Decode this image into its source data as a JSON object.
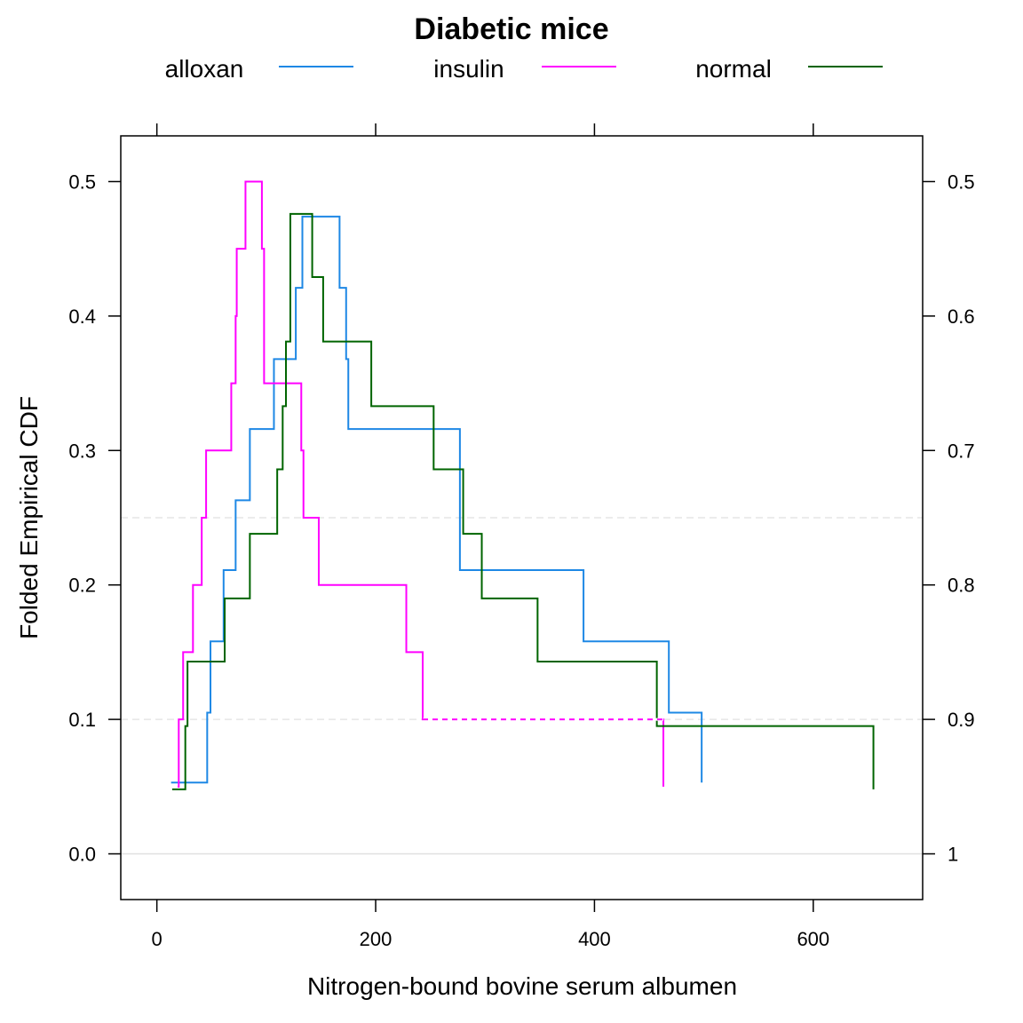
{
  "chart_data": {
    "type": "line",
    "title": "Diabetic mice",
    "xlabel": "Nitrogen-bound bovine serum albumen",
    "ylabel": "Folded Empirical CDF",
    "xlim": [
      -33,
      700
    ],
    "ylim": [
      -0.034,
      0.534
    ],
    "x_ticks": [
      0,
      200,
      400,
      600
    ],
    "x_tick_labels": [
      "0",
      "200",
      "400",
      "600"
    ],
    "y_ticks_left": [
      0.0,
      0.1,
      0.2,
      0.3,
      0.4,
      0.5
    ],
    "y_tick_labels_left": [
      "0.0",
      "0.1",
      "0.2",
      "0.3",
      "0.4",
      "0.5"
    ],
    "y_ticks_right": [
      0.5,
      0.4,
      0.3,
      0.2,
      0.1,
      0.0
    ],
    "y_tick_labels_right": [
      "0.5",
      "0.6",
      "0.7",
      "0.8",
      "0.9",
      "1"
    ],
    "reference_lines": [
      0.0,
      0.1,
      0.25
    ],
    "legend_position": "top",
    "grid": false,
    "series": [
      {
        "name": "alloxan",
        "color": "#1e88e5",
        "steps": [
          [
            13,
            0.053
          ],
          [
            46,
            0.105
          ],
          [
            49,
            0.158
          ],
          [
            61,
            0.211
          ],
          [
            72,
            0.263
          ],
          [
            85,
            0.316
          ],
          [
            107,
            0.368
          ],
          [
            127,
            0.421
          ],
          [
            133,
            0.474
          ],
          [
            167,
            0.421
          ],
          [
            173,
            0.368
          ],
          [
            175,
            0.316
          ],
          [
            277,
            0.211
          ],
          [
            390,
            0.158
          ],
          [
            468,
            0.105
          ],
          [
            498,
            0.053
          ]
        ]
      },
      {
        "name": "insulin",
        "color": "#ff00ff",
        "steps": [
          [
            19,
            0.05
          ],
          [
            20,
            0.1
          ],
          [
            24,
            0.15
          ],
          [
            33,
            0.2
          ],
          [
            41,
            0.25
          ],
          [
            45,
            0.3
          ],
          [
            68,
            0.35
          ],
          [
            72,
            0.4
          ],
          [
            73,
            0.45
          ],
          [
            81,
            0.5
          ],
          [
            96,
            0.45
          ],
          [
            98,
            0.35
          ],
          [
            132,
            0.3
          ],
          [
            134,
            0.25
          ],
          [
            148,
            0.2
          ],
          [
            228,
            0.15
          ],
          [
            243,
            0.1
          ],
          [
            463,
            0.05
          ]
        ]
      },
      {
        "name": "normal",
        "color": "#006400",
        "steps": [
          [
            14,
            0.048
          ],
          [
            26,
            0.095
          ],
          [
            28,
            0.143
          ],
          [
            62,
            0.19
          ],
          [
            85,
            0.238
          ],
          [
            110,
            0.286
          ],
          [
            115,
            0.333
          ],
          [
            118,
            0.381
          ],
          [
            122,
            0.476
          ],
          [
            142,
            0.429
          ],
          [
            152,
            0.381
          ],
          [
            196,
            0.333
          ],
          [
            253,
            0.286
          ],
          [
            280,
            0.238
          ],
          [
            297,
            0.19
          ],
          [
            348,
            0.143
          ],
          [
            457,
            0.095
          ],
          [
            655,
            0.048
          ]
        ]
      }
    ]
  }
}
